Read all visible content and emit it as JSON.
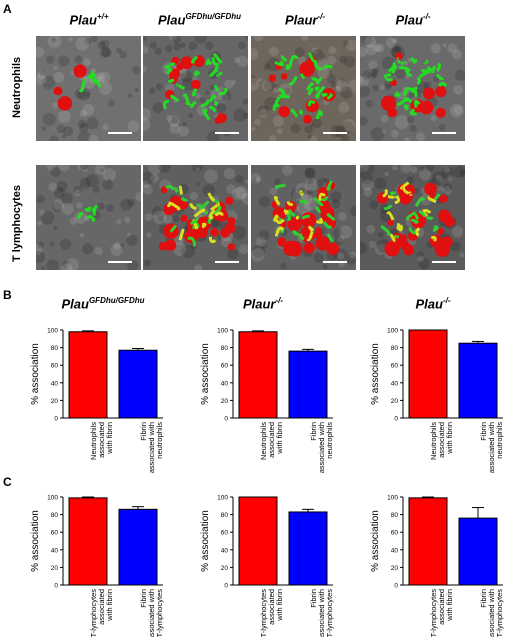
{
  "panels": {
    "a": "A",
    "b": "B",
    "c": "C"
  },
  "columns": [
    {
      "base": "Plau",
      "sup": "+/+"
    },
    {
      "base": "Plau",
      "sup": "GFDhu/GFDhu"
    },
    {
      "base": "Plaur",
      "sup": "-/-"
    },
    {
      "base": "Plau",
      "sup": "-/-"
    }
  ],
  "rows": [
    "Neutrophils",
    "T lymphocytes"
  ],
  "colors": {
    "red": "#ff0000",
    "blue": "#0000ff"
  },
  "chart_data": [
    {
      "type": "bar",
      "panel": "B",
      "title_base": "Plau",
      "title_sup": "GFDhu/GFDhu",
      "ylabel": "% association",
      "ylim": [
        0,
        100
      ],
      "yticks": [
        0,
        20,
        40,
        60,
        80,
        100
      ],
      "categories": [
        [
          "Neutrophils",
          "associated",
          "with fibrin"
        ],
        [
          "Fibrin",
          "associated with",
          "neutrophils"
        ]
      ],
      "values": [
        98,
        77
      ],
      "errors": [
        1,
        2
      ]
    },
    {
      "type": "bar",
      "panel": "B",
      "title_base": "Plaur",
      "title_sup": "-/-",
      "ylabel": "% association",
      "ylim": [
        0,
        100
      ],
      "yticks": [
        0,
        20,
        40,
        60,
        80,
        100
      ],
      "categories": [
        [
          "Neutrophils",
          "associated",
          "with fibrin"
        ],
        [
          "Fibrin",
          "associated with",
          "neutrophils"
        ]
      ],
      "values": [
        98,
        76
      ],
      "errors": [
        1,
        2
      ]
    },
    {
      "type": "bar",
      "panel": "B",
      "title_base": "Plau",
      "title_sup": "-/-",
      "ylabel": "% association",
      "ylim": [
        0,
        100
      ],
      "yticks": [
        0,
        20,
        40,
        60,
        80,
        100
      ],
      "categories": [
        [
          "Neutrophils",
          "associated",
          "with fibrin"
        ],
        [
          "Fibrin",
          "associated with",
          "neutrophils"
        ]
      ],
      "values": [
        100,
        85
      ],
      "errors": [
        0,
        2
      ]
    },
    {
      "type": "bar",
      "panel": "C",
      "title_base": "",
      "title_sup": "",
      "ylabel": "% association",
      "ylim": [
        0,
        100
      ],
      "yticks": [
        0,
        20,
        40,
        60,
        80,
        100
      ],
      "categories": [
        [
          "T-lymphocytes",
          "associated",
          "with fibrin"
        ],
        [
          "Fibrin",
          "associated with",
          "T-lymphocytes"
        ]
      ],
      "values": [
        99,
        86
      ],
      "errors": [
        1,
        3
      ]
    },
    {
      "type": "bar",
      "panel": "C",
      "title_base": "",
      "title_sup": "",
      "ylabel": "% association",
      "ylim": [
        0,
        100
      ],
      "yticks": [
        0,
        20,
        40,
        60,
        80,
        100
      ],
      "categories": [
        [
          "T-lymphocytes",
          "associated",
          "with fibrin"
        ],
        [
          "Fibrin",
          "associated with",
          "T-lymphocytes"
        ]
      ],
      "values": [
        100,
        83
      ],
      "errors": [
        0,
        3
      ]
    },
    {
      "type": "bar",
      "panel": "C",
      "title_base": "",
      "title_sup": "",
      "ylabel": "% association",
      "ylim": [
        0,
        100
      ],
      "yticks": [
        0,
        20,
        40,
        60,
        80,
        100
      ],
      "categories": [
        [
          "T-lymphocytes",
          "associated",
          "with fibrin"
        ],
        [
          "Fibrin",
          "associated with",
          "T-lymphocytes"
        ]
      ],
      "values": [
        99,
        76
      ],
      "errors": [
        1,
        12
      ]
    }
  ]
}
